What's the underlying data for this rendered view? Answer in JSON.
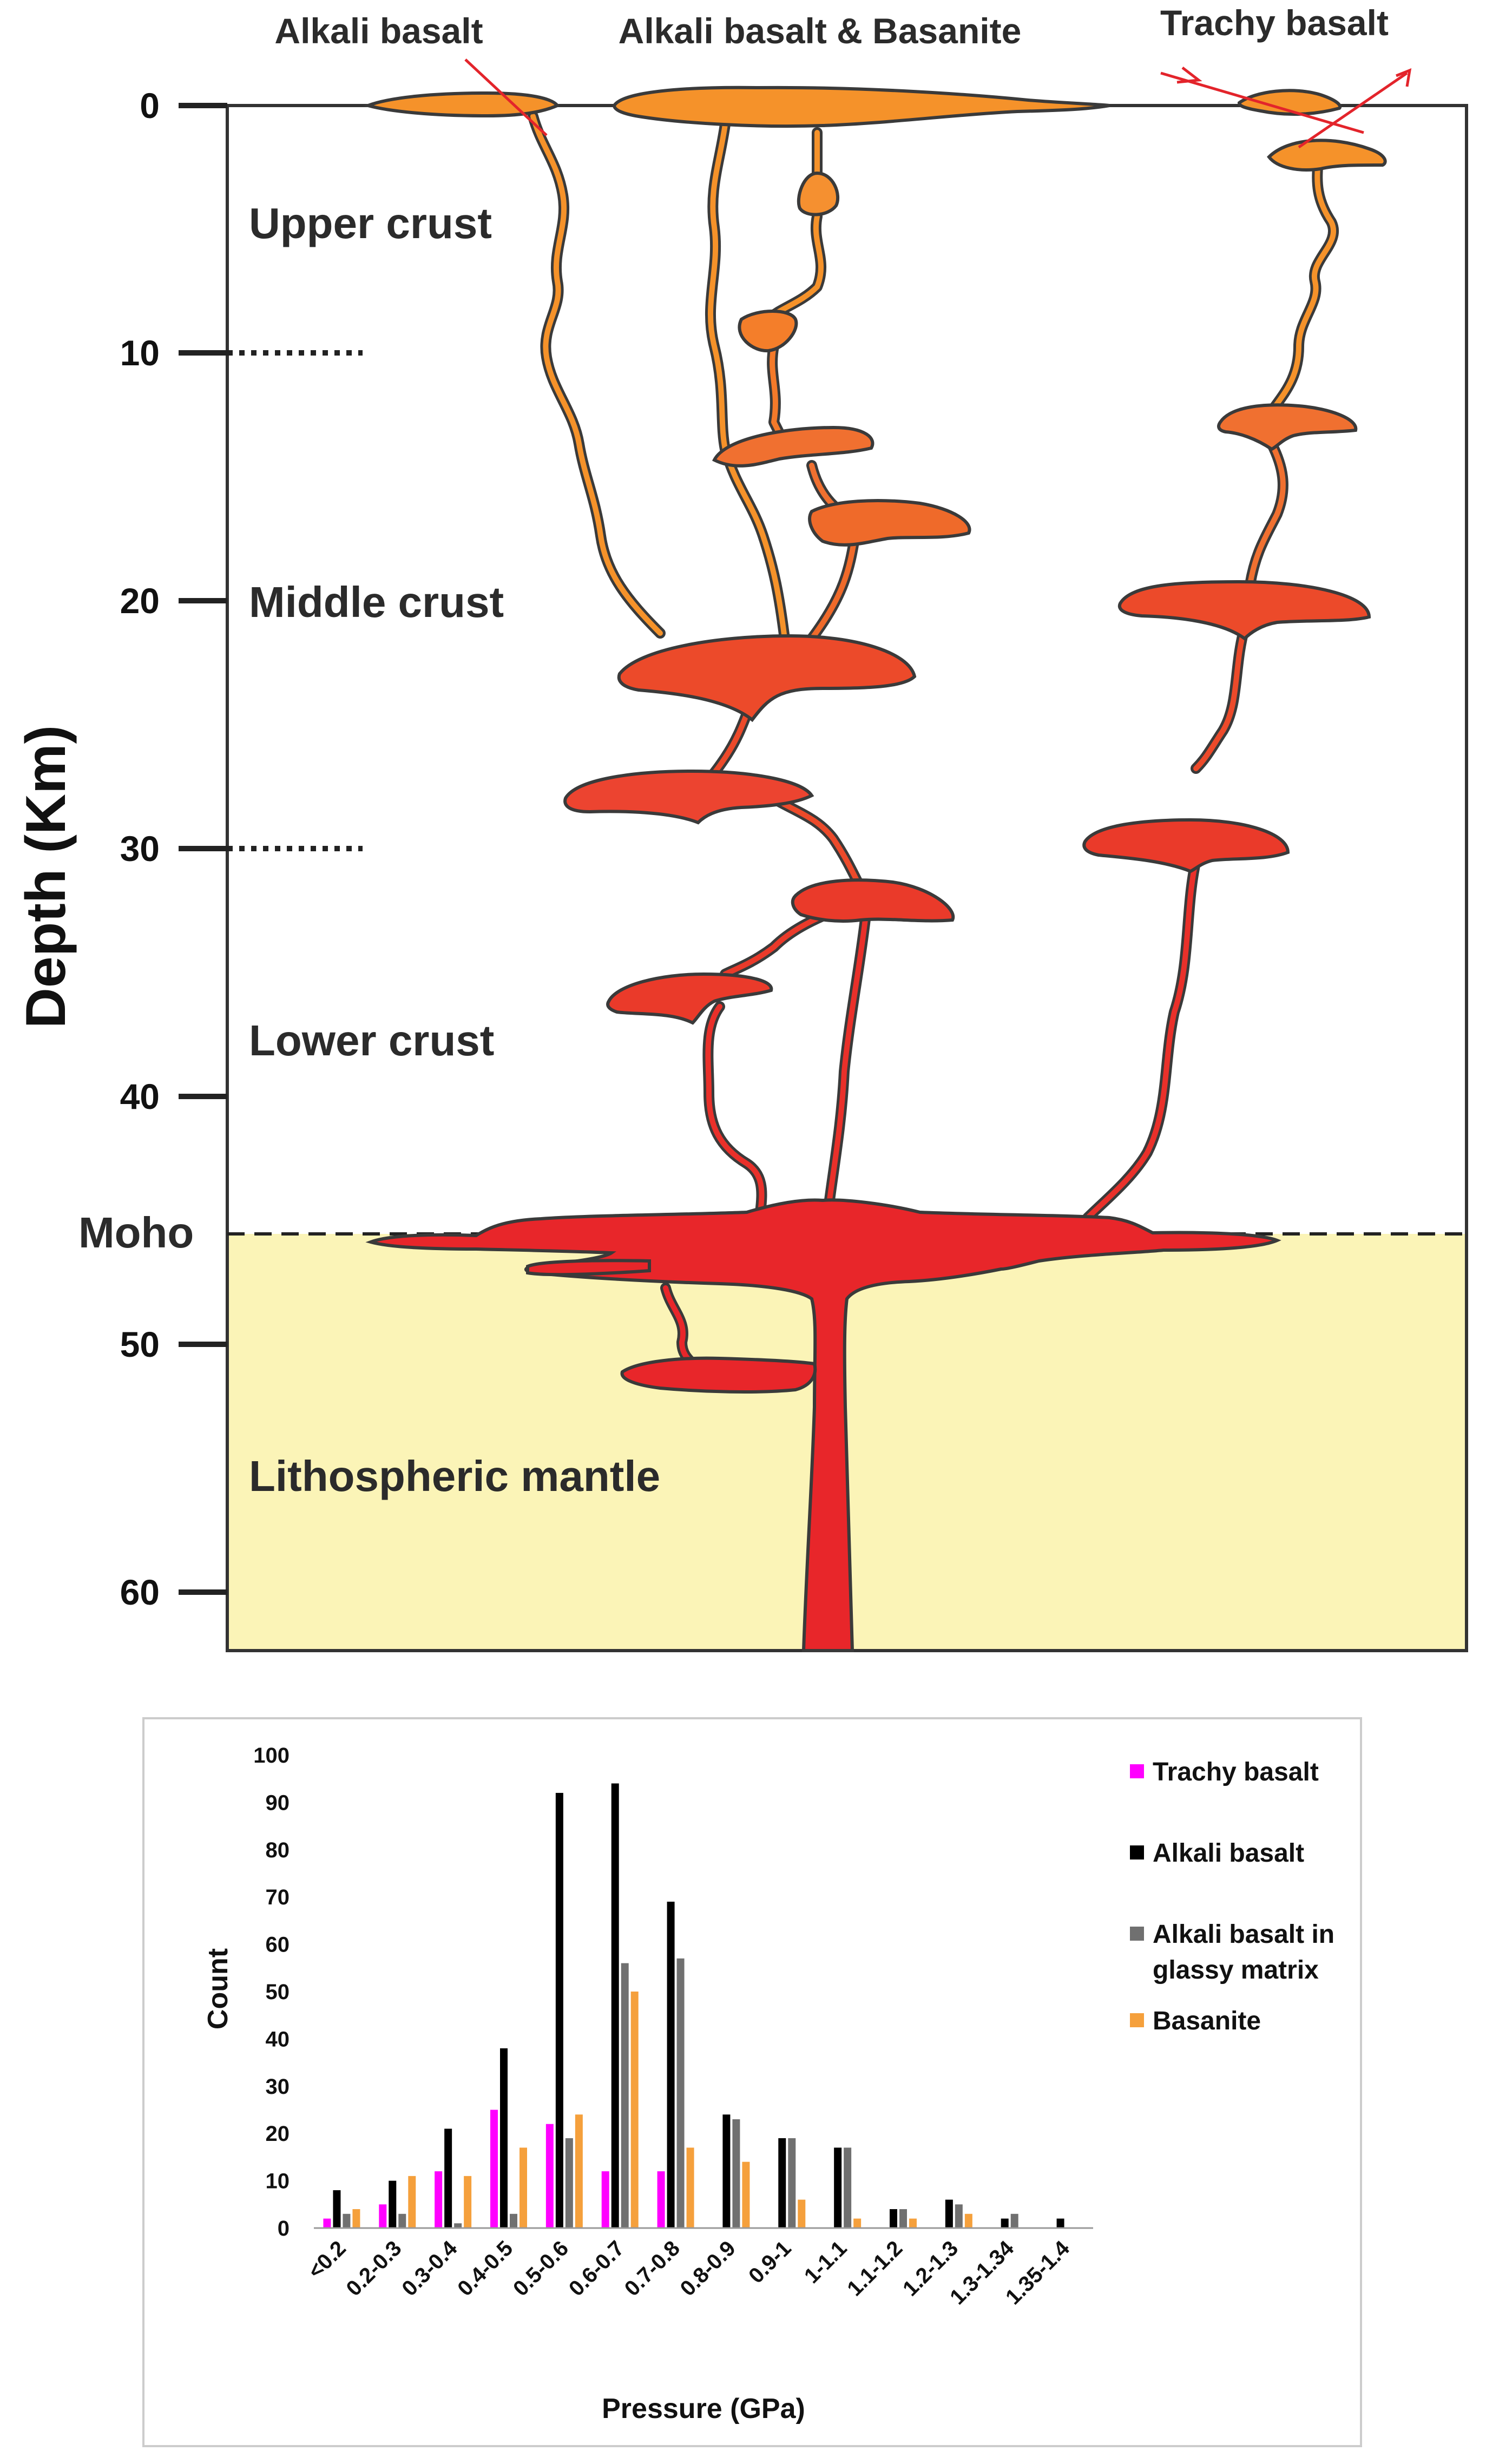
{
  "diagram": {
    "top_labels": {
      "alkali_basalt": "Alkali basalt",
      "alkali_basanite": "Alkali basalt & Basanite",
      "trachy_basalt": "Trachy basalt"
    },
    "layer_labels": {
      "upper_crust": "Upper crust",
      "middle_crust": "Middle crust",
      "lower_crust": "Lower crust",
      "moho": "Moho",
      "mantle": "Lithospheric mantle"
    },
    "depth_axis": {
      "title": "Depth (Km)",
      "ticks": [
        "0",
        "10",
        "20",
        "30",
        "40",
        "50",
        "60"
      ]
    },
    "colors": {
      "mantle_fill": "#fbf4b7",
      "magma_shallow": "#f5922a",
      "magma_mid": "#ef5a2a",
      "magma_deep": "#e8262a",
      "outline": "#3a3a3a",
      "fault": "#e3242b"
    }
  },
  "chart_data": {
    "type": "bar",
    "xlabel": "Pressure (GPa)",
    "ylabel": "Count",
    "ylim": [
      0,
      100
    ],
    "yticks": [
      "0",
      "10",
      "20",
      "30",
      "40",
      "50",
      "60",
      "70",
      "80",
      "90",
      "100"
    ],
    "grid": false,
    "legend_position": "right",
    "categories": [
      "<0.2",
      "0.2-0.3",
      "0.3-0.4",
      "0.4-0.5",
      "0.5-0.6",
      "0.6-0.7",
      "0.7-0.8",
      "0.8-0.9",
      "0.9-1",
      "1-1.1",
      "1.1-1.2",
      "1.2-1.3",
      "1.3-1.34",
      "1.35-1.4"
    ],
    "series": [
      {
        "name": "Trachy basalt",
        "color": "#ff00ff",
        "values": [
          2,
          5,
          12,
          25,
          22,
          12,
          12,
          0,
          0,
          0,
          0,
          0,
          0,
          0
        ]
      },
      {
        "name": "Alkali basalt",
        "color": "#000000",
        "values": [
          8,
          10,
          21,
          38,
          92,
          94,
          69,
          24,
          19,
          17,
          4,
          6,
          2,
          2
        ]
      },
      {
        "name": "Alkali basalt in glassy matrix",
        "color": "#707070",
        "values": [
          3,
          3,
          1,
          3,
          19,
          56,
          57,
          23,
          19,
          17,
          4,
          5,
          3,
          0
        ]
      },
      {
        "name": "Basanite",
        "color": "#f5a03c",
        "values": [
          4,
          11,
          11,
          17,
          24,
          50,
          17,
          14,
          6,
          2,
          2,
          3,
          0,
          0
        ]
      }
    ],
    "legend": [
      {
        "lines": [
          "Trachy basalt"
        ]
      },
      {
        "lines": [
          "Alkali basalt"
        ]
      },
      {
        "lines": [
          "Alkali basalt in",
          "glassy matrix"
        ]
      },
      {
        "lines": [
          "Basanite"
        ]
      }
    ]
  }
}
